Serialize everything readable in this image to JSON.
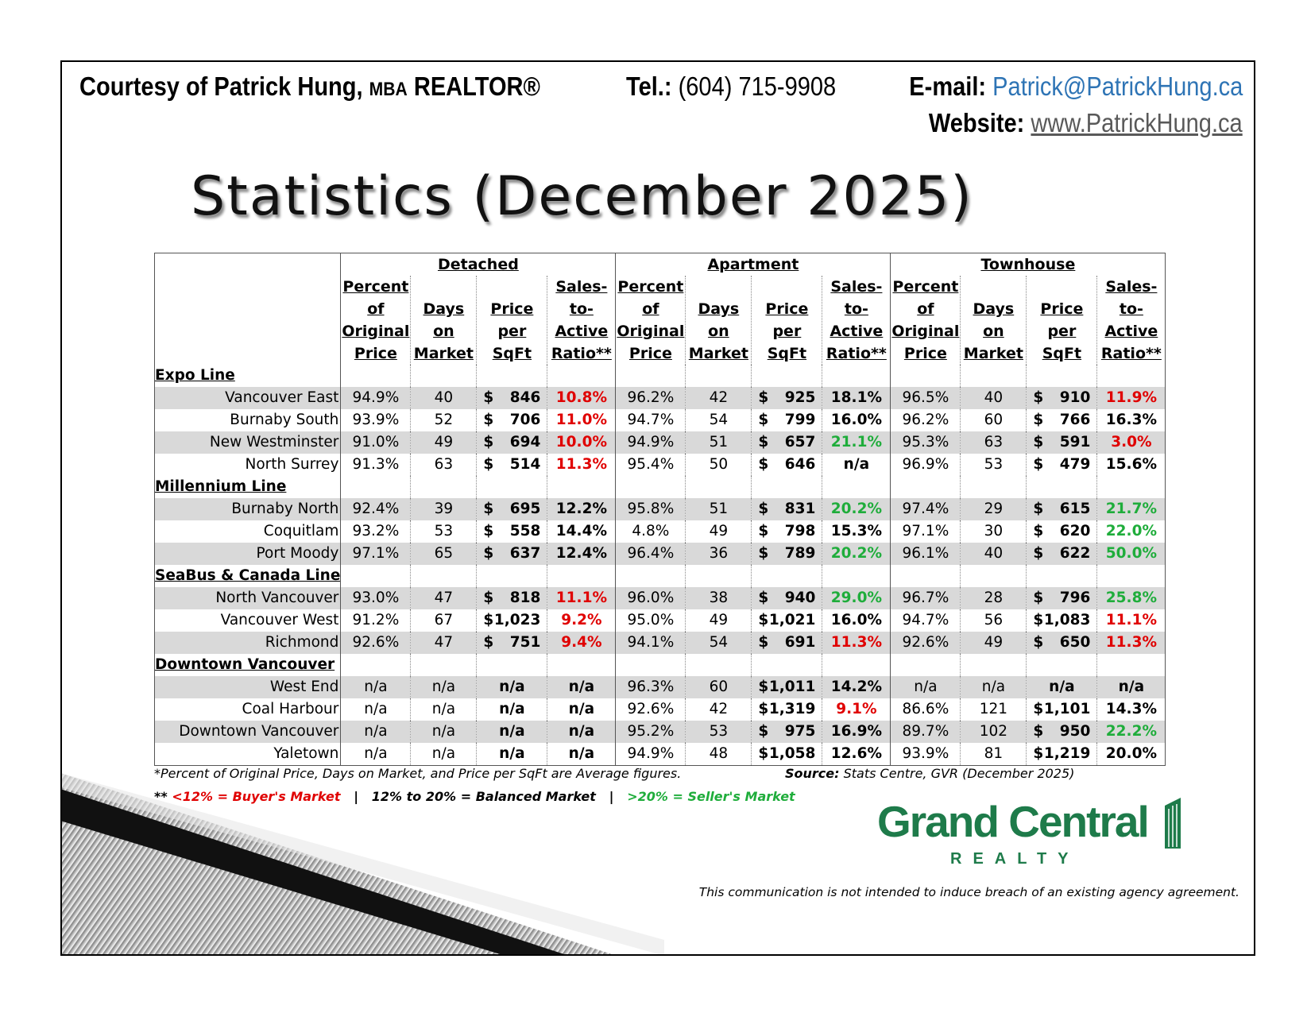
{
  "header": {
    "courtesy_prefix": "Courtesy of Patrick Hung,",
    "courtesy_mba": "MBA",
    "courtesy_suffix": "REALTOR®",
    "tel_label": "Tel.:",
    "tel_value": "(604) 715-9908",
    "email_label": "E-mail:",
    "email_value": "Patrick@PatrickHung.ca",
    "website_label": "Website:",
    "website_value": "www.PatrickHung.ca"
  },
  "title": "Statistics (December 2025)",
  "table": {
    "groups": [
      "Detached",
      "Apartment",
      "Townhouse"
    ],
    "columns": [
      "Percent\nof\nOriginal\nPrice",
      "Days\non\nMarket",
      "Price\nper\nSqFt",
      "Sales-\nto-\nActive\nRatio**"
    ],
    "sections": [
      {
        "name": "Expo Line",
        "rows": [
          {
            "area": "Vancouver East",
            "d": [
              "94.9%",
              "40",
              "846",
              "10.8%"
            ],
            "a": [
              "96.2%",
              "42",
              "925",
              "18.1%"
            ],
            "t": [
              "96.5%",
              "40",
              "910",
              "11.9%"
            ]
          },
          {
            "area": "Burnaby South",
            "d": [
              "93.9%",
              "52",
              "706",
              "11.0%"
            ],
            "a": [
              "94.7%",
              "54",
              "799",
              "16.0%"
            ],
            "t": [
              "96.2%",
              "60",
              "766",
              "16.3%"
            ]
          },
          {
            "area": "New Westminster",
            "d": [
              "91.0%",
              "49",
              "694",
              "10.0%"
            ],
            "a": [
              "94.9%",
              "51",
              "657",
              "21.1%"
            ],
            "t": [
              "95.3%",
              "63",
              "591",
              "3.0%"
            ]
          },
          {
            "area": "North Surrey",
            "d": [
              "91.3%",
              "63",
              "514",
              "11.3%"
            ],
            "a": [
              "95.4%",
              "50",
              "646",
              "n/a"
            ],
            "t": [
              "96.9%",
              "53",
              "479",
              "15.6%"
            ]
          }
        ]
      },
      {
        "name": "Millennium Line",
        "rows": [
          {
            "area": "Burnaby North",
            "d": [
              "92.4%",
              "39",
              "695",
              "12.2%"
            ],
            "a": [
              "95.8%",
              "51",
              "831",
              "20.2%"
            ],
            "t": [
              "97.4%",
              "29",
              "615",
              "21.7%"
            ]
          },
          {
            "area": "Coquitlam",
            "d": [
              "93.2%",
              "53",
              "558",
              "14.4%"
            ],
            "a": [
              "4.8%",
              "49",
              "798",
              "15.3%"
            ],
            "t": [
              "97.1%",
              "30",
              "620",
              "22.0%"
            ]
          },
          {
            "area": "Port Moody",
            "d": [
              "97.1%",
              "65",
              "637",
              "12.4%"
            ],
            "a": [
              "96.4%",
              "36",
              "789",
              "20.2%"
            ],
            "t": [
              "96.1%",
              "40",
              "622",
              "50.0%"
            ]
          }
        ]
      },
      {
        "name": "SeaBus & Canada Line",
        "rows": [
          {
            "area": "North Vancouver",
            "d": [
              "93.0%",
              "47",
              "818",
              "11.1%"
            ],
            "a": [
              "96.0%",
              "38",
              "940",
              "29.0%"
            ],
            "t": [
              "96.7%",
              "28",
              "796",
              "25.8%"
            ]
          },
          {
            "area": "Vancouver West",
            "d": [
              "91.2%",
              "67",
              "1,023",
              "9.2%"
            ],
            "a": [
              "95.0%",
              "49",
              "1,021",
              "16.0%"
            ],
            "t": [
              "94.7%",
              "56",
              "1,083",
              "11.1%"
            ]
          },
          {
            "area": "Richmond",
            "d": [
              "92.6%",
              "47",
              "751",
              "9.4%"
            ],
            "a": [
              "94.1%",
              "54",
              "691",
              "11.3%"
            ],
            "t": [
              "92.6%",
              "49",
              "650",
              "11.3%"
            ]
          }
        ]
      },
      {
        "name": "Downtown Vancouver",
        "rows": [
          {
            "area": "West End",
            "d": [
              "n/a",
              "n/a",
              "n/a",
              "n/a"
            ],
            "a": [
              "96.3%",
              "60",
              "1,011",
              "14.2%"
            ],
            "t": [
              "n/a",
              "n/a",
              "n/a",
              "n/a"
            ]
          },
          {
            "area": "Coal Harbour",
            "d": [
              "n/a",
              "n/a",
              "n/a",
              "n/a"
            ],
            "a": [
              "92.6%",
              "42",
              "1,319",
              "9.1%"
            ],
            "t": [
              "86.6%",
              "121",
              "1,101",
              "14.3%"
            ]
          },
          {
            "area": "Downtown Vancouver",
            "d": [
              "n/a",
              "n/a",
              "n/a",
              "n/a"
            ],
            "a": [
              "95.2%",
              "53",
              "975",
              "16.9%"
            ],
            "t": [
              "89.7%",
              "102",
              "950",
              "22.2%"
            ]
          },
          {
            "area": "Yaletown",
            "d": [
              "n/a",
              "n/a",
              "n/a",
              "n/a"
            ],
            "a": [
              "94.9%",
              "48",
              "1,058",
              "12.6%"
            ],
            "t": [
              "93.9%",
              "81",
              "1,219",
              "20.0%"
            ]
          }
        ]
      }
    ],
    "currency_symbol": "$"
  },
  "notes": {
    "averages": "*Percent of Original Price, Days on Market, and Price per SqFt are Average figures.",
    "source_label": "Source:",
    "source_value": "Stats Centre, GVR (December 2025)",
    "legend_prefix": "**",
    "legend_buyer": "<12% = Buyer's Market",
    "legend_sep": "|",
    "legend_balanced": "12% to 20% = Balanced Market",
    "legend_seller": ">20% = Seller's Market"
  },
  "logo": {
    "main": "Grand Central",
    "sub": "REALTY"
  },
  "disclaimer": "This communication is not intended to induce breach of an existing agency agreement.",
  "colors": {
    "buyer_red": "#e00000",
    "seller_green": "#1fad3b",
    "brand_green": "#1e7b4a",
    "link_blue": "#2e74b5",
    "row_shade": "#d9d9d9"
  }
}
